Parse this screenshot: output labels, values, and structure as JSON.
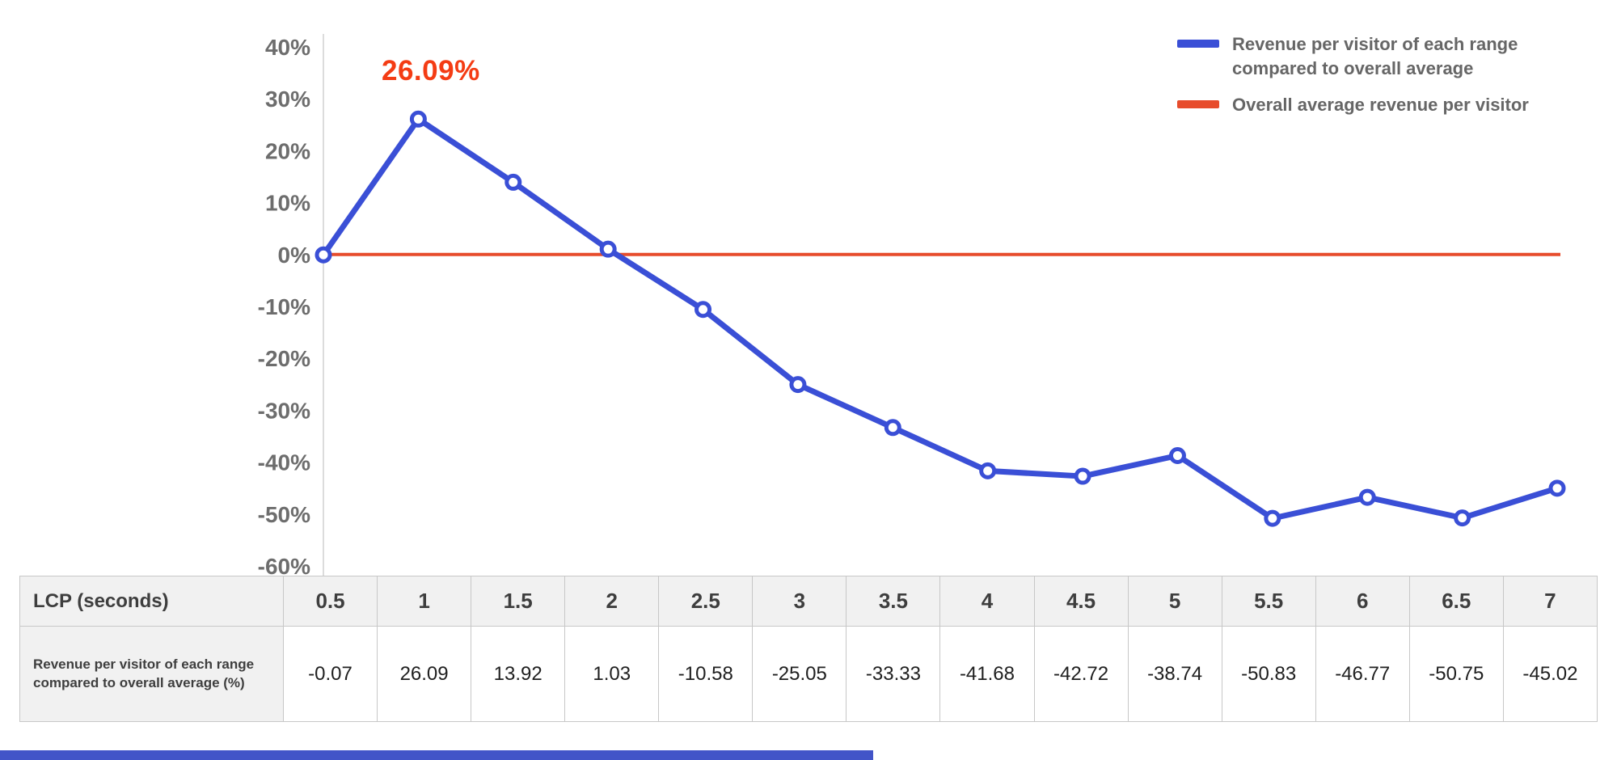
{
  "chart_data": {
    "type": "line",
    "title": "",
    "xlabel": "",
    "ylabel": "",
    "x": [
      0.5,
      1,
      1.5,
      2,
      2.5,
      3,
      3.5,
      4,
      4.5,
      5,
      5.5,
      6,
      6.5,
      7
    ],
    "ylim": [
      -60,
      40
    ],
    "ytick_step": 10,
    "ytick_labels": [
      "40%",
      "30%",
      "20%",
      "10%",
      "0%",
      "-10%",
      "-20%",
      "-30%",
      "-40%",
      "-50%",
      "-60%"
    ],
    "grid": false,
    "legend_position": "top-right",
    "series": [
      {
        "name": "Revenue per visitor of each range compared to overall average",
        "values": [
          -0.07,
          26.09,
          13.92,
          1.03,
          -10.58,
          -25.05,
          -33.33,
          -41.68,
          -42.72,
          -38.74,
          -50.83,
          -46.77,
          -50.75,
          -45.02
        ],
        "color": "#3a4fd6",
        "marker": "circle"
      },
      {
        "name": "Overall average revenue per visitor",
        "values": [
          0,
          0,
          0,
          0,
          0,
          0,
          0,
          0,
          0,
          0,
          0,
          0,
          0,
          0
        ],
        "color": "#e74c2c",
        "marker": "none"
      }
    ],
    "annotation": {
      "text": "26.09%",
      "x_index": 1,
      "color": "#f43c14"
    },
    "legend": [
      {
        "label": "Revenue per visitor of each range compared to overall average",
        "color": "#3a4fd6"
      },
      {
        "label": "Overall average revenue per visitor",
        "color": "#e74c2c"
      }
    ]
  },
  "table": {
    "header_row": {
      "label": "LCP (seconds)",
      "values": [
        "0.5",
        "1",
        "1.5",
        "2",
        "2.5",
        "3",
        "3.5",
        "4",
        "4.5",
        "5",
        "5.5",
        "6",
        "6.5",
        "7"
      ]
    },
    "data_row": {
      "label": "Revenue per visitor of each range compared to overall average (%)",
      "values": [
        "-0.07",
        "26.09",
        "13.92",
        "1.03",
        "-10.58",
        "-25.05",
        "-33.33",
        "-41.68",
        "-42.72",
        "-38.74",
        "-50.83",
        "-46.77",
        "-50.75",
        "-45.02"
      ]
    }
  },
  "footer": {
    "bar_color": "#4254c8"
  }
}
